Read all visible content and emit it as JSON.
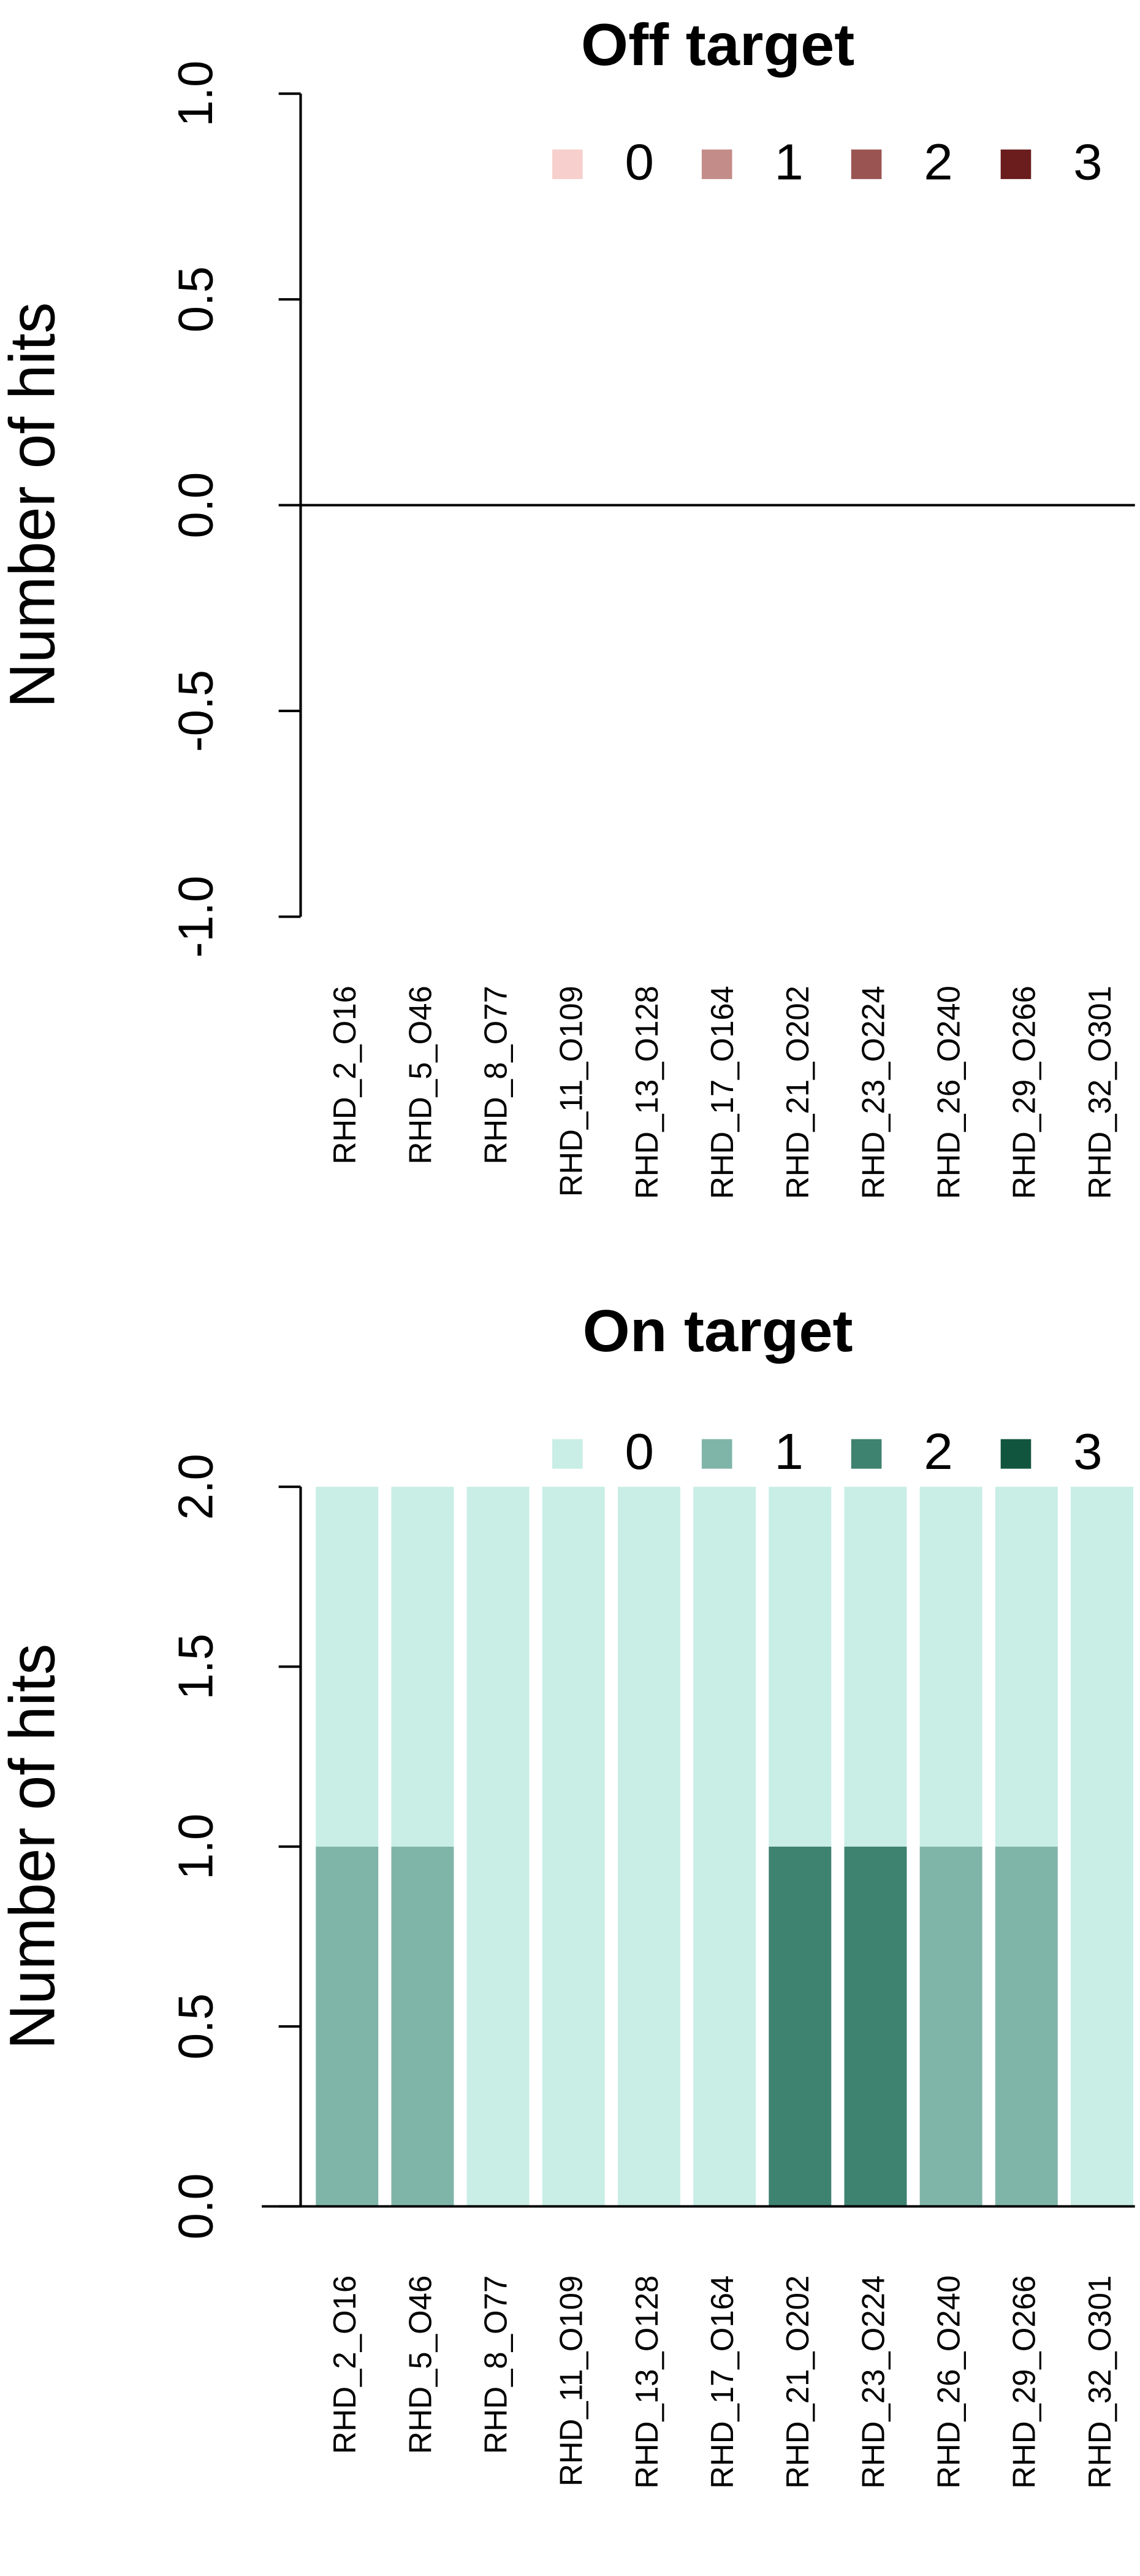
{
  "chart_data": [
    {
      "type": "bar",
      "stacked": true,
      "title": "Off target",
      "y_label": "Number of hits",
      "categories": [
        "RHD_2_O16",
        "RHD_5_O46",
        "RHD_8_O77",
        "RHD_11_O109",
        "RHD_13_O128",
        "RHD_17_O164",
        "RHD_21_O202",
        "RHD_23_O224",
        "RHD_26_O240",
        "RHD_29_O266",
        "RHD_32_O301"
      ],
      "series": [
        {
          "name": "0",
          "color": "#f7cfcc",
          "values": [
            0,
            0,
            0,
            0,
            0,
            0,
            0,
            0,
            0,
            0,
            0
          ]
        },
        {
          "name": "1",
          "color": "#c48c89",
          "values": [
            0,
            0,
            0,
            0,
            0,
            0,
            0,
            0,
            0,
            0,
            0
          ]
        },
        {
          "name": "2",
          "color": "#9a5552",
          "values": [
            0,
            0,
            0,
            0,
            0,
            0,
            0,
            0,
            0,
            0,
            0
          ]
        },
        {
          "name": "3",
          "color": "#6b1d1d",
          "values": [
            0,
            0,
            0,
            0,
            0,
            0,
            0,
            0,
            0,
            0,
            0
          ]
        }
      ],
      "ylim": [
        -1,
        1
      ],
      "yticks": [
        {
          "value": -1,
          "label": "-1.0"
        },
        -0.5,
        {
          "value": 0,
          "label": "0.0"
        },
        0.5,
        {
          "value": 1,
          "label": "1.0"
        }
      ],
      "legend": "top-right"
    },
    {
      "type": "bar",
      "stacked": true,
      "title": "On target",
      "y_label": "Number of hits",
      "categories": [
        "RHD_2_O16",
        "RHD_5_O46",
        "RHD_8_O77",
        "RHD_11_O109",
        "RHD_13_O128",
        "RHD_17_O164",
        "RHD_21_O202",
        "RHD_23_O224",
        "RHD_26_O240",
        "RHD_29_O266",
        "RHD_32_O301"
      ],
      "series": [
        {
          "name": "0",
          "color": "#c8eee6",
          "values": [
            1,
            1,
            2,
            2,
            2,
            2,
            1,
            1,
            1,
            1,
            2
          ]
        },
        {
          "name": "1",
          "color": "#7fb5a8",
          "values": [
            1,
            1,
            0,
            0,
            0,
            0,
            0,
            0,
            1,
            1,
            0
          ]
        },
        {
          "name": "2",
          "color": "#3e8270",
          "values": [
            0,
            0,
            0,
            0,
            0,
            0,
            1,
            1,
            0,
            0,
            0
          ]
        },
        {
          "name": "3",
          "color": "#12553f",
          "values": [
            0,
            0,
            0,
            0,
            0,
            0,
            0,
            0,
            0,
            0,
            0
          ]
        }
      ],
      "ylim": [
        0,
        2
      ],
      "yticks": [
        {
          "value": 0,
          "label": "0.0"
        },
        0.5,
        {
          "value": 1,
          "label": "1.0"
        },
        1.5,
        {
          "value": 2,
          "label": "2.0"
        }
      ],
      "legend": "top-right"
    }
  ]
}
